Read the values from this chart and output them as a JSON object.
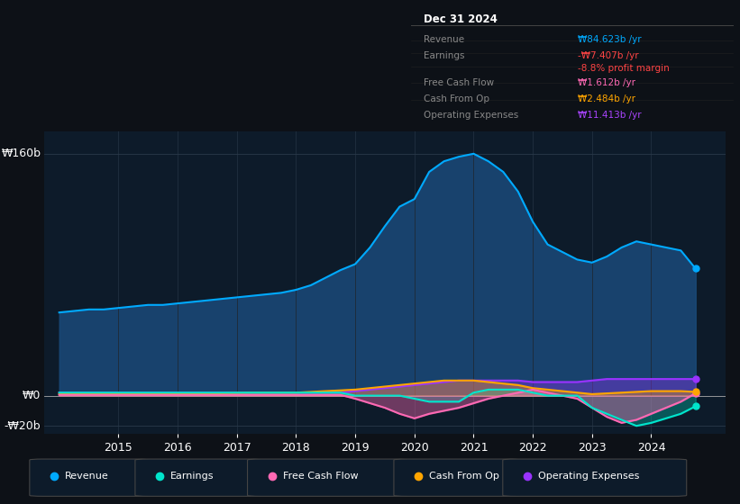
{
  "bg_color": "#0d1117",
  "plot_bg_color": "#0d1b2a",
  "grid_color": "#1e2d3d",
  "title_box": {
    "date": "Dec 31 2024",
    "rows": [
      {
        "label": "Revenue",
        "value": "₩84.623b /yr",
        "value_color": "#00aaff"
      },
      {
        "label": "Earnings",
        "value": "-₩7.407b /yr",
        "value_color": "#ff4444"
      },
      {
        "label": "",
        "value": "-8.8% profit margin",
        "value_color": "#ff4444"
      },
      {
        "label": "Free Cash Flow",
        "value": "₩1.612b /yr",
        "value_color": "#ff69b4"
      },
      {
        "label": "Cash From Op",
        "value": "₩2.484b /yr",
        "value_color": "#ffa500"
      },
      {
        "label": "Operating Expenses",
        "value": "₩11.413b /yr",
        "value_color": "#aa44ff"
      }
    ]
  },
  "ylabel_left": "₩160b",
  "ylabel_zero": "₩0",
  "ylabel_neg": "-₩20b",
  "ylim": [
    -25,
    175
  ],
  "years": [
    2014.0,
    2014.25,
    2014.5,
    2014.75,
    2015.0,
    2015.25,
    2015.5,
    2015.75,
    2016.0,
    2016.25,
    2016.5,
    2016.75,
    2017.0,
    2017.25,
    2017.5,
    2017.75,
    2018.0,
    2018.25,
    2018.5,
    2018.75,
    2019.0,
    2019.25,
    2019.5,
    2019.75,
    2020.0,
    2020.25,
    2020.5,
    2020.75,
    2021.0,
    2021.25,
    2021.5,
    2021.75,
    2022.0,
    2022.25,
    2022.5,
    2022.75,
    2023.0,
    2023.25,
    2023.5,
    2023.75,
    2024.0,
    2024.25,
    2024.5,
    2024.75
  ],
  "revenue": [
    55,
    56,
    57,
    57,
    58,
    59,
    60,
    60,
    61,
    62,
    63,
    64,
    65,
    66,
    67,
    68,
    70,
    73,
    78,
    83,
    87,
    98,
    112,
    125,
    130,
    148,
    155,
    158,
    160,
    155,
    148,
    135,
    115,
    100,
    95,
    90,
    88,
    92,
    98,
    102,
    100,
    98,
    96,
    84
  ],
  "earnings": [
    2,
    2,
    2,
    2,
    2,
    2,
    2,
    2,
    2,
    2,
    2,
    2,
    2,
    2,
    2,
    2,
    2,
    2,
    2,
    2,
    0,
    0,
    0,
    0,
    -2,
    -4,
    -4,
    -4,
    2,
    4,
    4,
    4,
    2,
    0,
    0,
    0,
    -8,
    -12,
    -16,
    -20,
    -18,
    -15,
    -12,
    -7
  ],
  "free_cash_flow": [
    0.5,
    0.5,
    0.5,
    0.5,
    0.5,
    0.5,
    0.5,
    0.5,
    0.5,
    0.5,
    0.5,
    0.5,
    0.5,
    0.5,
    0.5,
    0.5,
    0.5,
    0.5,
    0.5,
    0.5,
    -2,
    -5,
    -8,
    -12,
    -15,
    -12,
    -10,
    -8,
    -5,
    -2,
    0,
    2,
    4,
    2,
    0,
    -2,
    -8,
    -14,
    -18,
    -16,
    -12,
    -8,
    -4,
    1.6
  ],
  "cash_from_op": [
    1,
    1,
    1,
    1,
    1,
    1,
    1,
    1,
    1,
    1.2,
    1.4,
    1.6,
    1.8,
    2,
    2,
    2,
    2,
    2.5,
    3,
    3.5,
    4,
    5,
    6,
    7,
    8,
    9,
    10,
    10,
    10,
    9,
    8,
    7,
    5,
    4,
    3,
    2,
    1,
    1.5,
    2,
    2.5,
    3,
    3,
    3,
    2.5
  ],
  "op_expenses": [
    2,
    2,
    2,
    2,
    2,
    2,
    2,
    2,
    2,
    2,
    2,
    2,
    2,
    2,
    2,
    2,
    2,
    2,
    2,
    2,
    3,
    4,
    5,
    6,
    7,
    8,
    9,
    10,
    10,
    10,
    10,
    10,
    9,
    9,
    9,
    9,
    10,
    11,
    11,
    11,
    11,
    11,
    11,
    11
  ],
  "revenue_color": "#00aaff",
  "revenue_fill": "#1a4a7a",
  "earnings_color": "#00e5cc",
  "free_cf_color": "#ff69b4",
  "cash_op_color": "#ffa500",
  "op_exp_color": "#9933ff",
  "legend_items": [
    {
      "label": "Revenue",
      "color": "#00aaff"
    },
    {
      "label": "Earnings",
      "color": "#00e5cc"
    },
    {
      "label": "Free Cash Flow",
      "color": "#ff69b4"
    },
    {
      "label": "Cash From Op",
      "color": "#ffa500"
    },
    {
      "label": "Operating Expenses",
      "color": "#9933ff"
    }
  ]
}
